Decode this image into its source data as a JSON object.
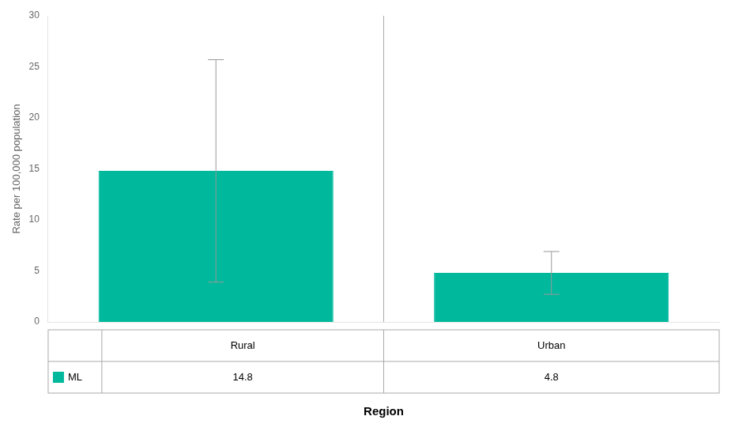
{
  "chart_data": {
    "type": "bar",
    "categories": [
      "Rural",
      "Urban"
    ],
    "series": [
      {
        "name": "ML",
        "color": "#00B89C",
        "values": [
          14.8,
          4.8
        ],
        "error_upper": [
          25.7,
          6.9
        ],
        "error_lower": [
          3.9,
          2.7
        ]
      }
    ],
    "xlabel": "Region",
    "ylabel": "Rate per 100,000 population",
    "ylim": [
      0,
      30
    ],
    "yticks": [
      0,
      5,
      10,
      15,
      20,
      25,
      30
    ],
    "grid": false,
    "tick_labels": "y"
  }
}
